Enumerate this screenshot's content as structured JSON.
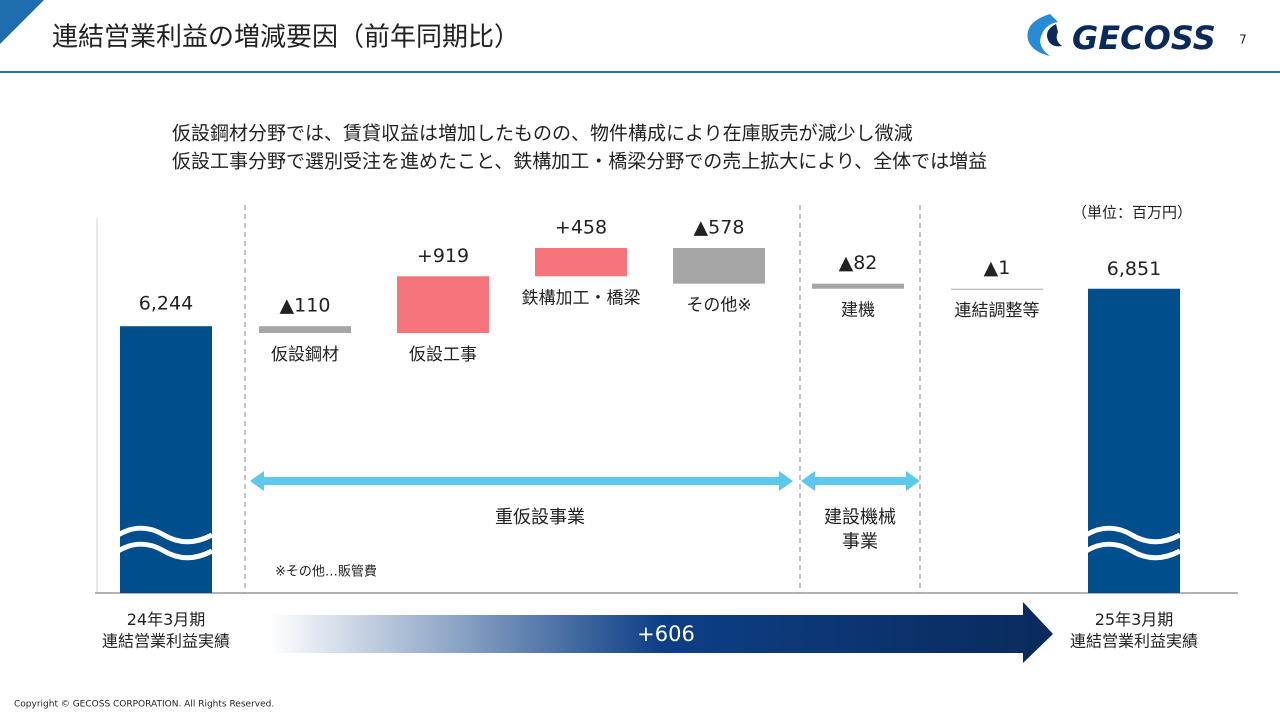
{
  "header": {
    "title": "連結営業利益の増減要因（前年同期比）",
    "logo": "GECOSS",
    "page": "7"
  },
  "headline": [
    "仮設鋼材分野では、賃貸収益は増加したものの、物件構成により在庫販売が減少し微減",
    "仮設工事分野で選別受注を進めたこと、鉄構加工・橋梁分野での売上拡大により、全体では増益"
  ],
  "chart_data": {
    "type": "waterfall",
    "unit": "（単位：百万円）",
    "categories": [
      "24年3月期\n連結営業利益実績",
      "仮設鋼材",
      "仮設工事",
      "鉄構加工・橋梁",
      "その他※",
      "建機",
      "連結調整等",
      "25年3月期\n連結営業利益実績"
    ],
    "values": [
      6244,
      -110,
      919,
      458,
      -578,
      -82,
      -1,
      6851
    ],
    "value_labels": [
      "6,244",
      "▲110",
      "+919",
      "+458",
      "▲578",
      "▲82",
      "▲1",
      "6,851"
    ],
    "colors": {
      "total": "#004f8c",
      "increase": "#f5737b",
      "decrease": "#a6a6a6"
    },
    "groups": [
      "重仮設事業",
      "建設機械\n事業"
    ],
    "change": {
      "value": 606,
      "label": "+606"
    },
    "note": "※その他…販管費"
  },
  "footer": "Copyright © GECOSS CORPORATION. All Rights Reserved."
}
